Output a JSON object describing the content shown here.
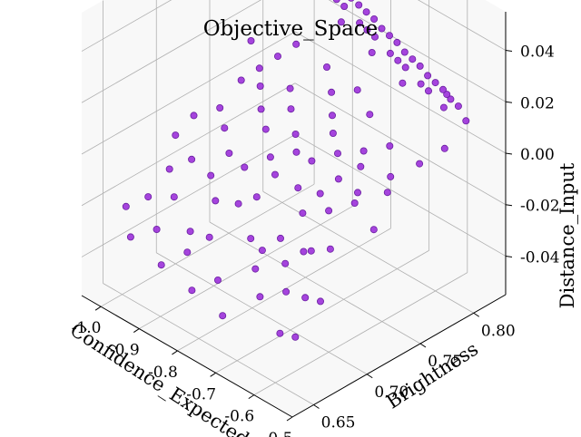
{
  "chart_data": {
    "type": "scatter",
    "projection": "3d",
    "title": "Objective_Space",
    "xlabel": "Confidence_Expected",
    "ylabel": "Brightness",
    "zlabel": "Distance_Input",
    "xlim": [
      -1.05,
      -0.5
    ],
    "ylim": [
      0.63,
      0.83
    ],
    "zlim": [
      -0.055,
      0.055
    ],
    "x_ticks": [
      "-1.0",
      "-0.9",
      "-0.8",
      "-0.7",
      "-0.6",
      "-0.5"
    ],
    "y_ticks": [
      "0.65",
      "0.70",
      "0.75",
      "0.80"
    ],
    "z_ticks": [
      "-0.04",
      "-0.02",
      "0.00",
      "0.02",
      "0.04"
    ],
    "grid": true,
    "point_color": "#9b30d9",
    "point_edge_color": "#6a1fa0",
    "series": [
      {
        "points": [
          [
            -1.0,
            0.8,
            0.05
          ],
          [
            -0.98,
            0.8,
            0.049
          ],
          [
            -0.96,
            0.8,
            0.048
          ],
          [
            -0.94,
            0.8,
            0.047
          ],
          [
            -0.92,
            0.8,
            0.046
          ],
          [
            -0.9,
            0.8,
            0.045
          ],
          [
            -0.88,
            0.8,
            0.044
          ],
          [
            -0.86,
            0.8,
            0.043
          ],
          [
            -0.84,
            0.8,
            0.041
          ],
          [
            -0.82,
            0.8,
            0.04
          ],
          [
            -0.8,
            0.8,
            0.039
          ],
          [
            -0.78,
            0.8,
            0.038
          ],
          [
            -0.76,
            0.8,
            0.037
          ],
          [
            -0.74,
            0.8,
            0.035
          ],
          [
            -0.72,
            0.8,
            0.034
          ],
          [
            -0.7,
            0.8,
            0.033
          ],
          [
            -0.68,
            0.8,
            0.031
          ],
          [
            -0.66,
            0.8,
            0.03
          ],
          [
            -0.64,
            0.8,
            0.029
          ],
          [
            -0.62,
            0.8,
            0.027
          ],
          [
            -0.6,
            0.8,
            0.026
          ],
          [
            -0.58,
            0.8,
            0.025
          ],
          [
            -0.56,
            0.8,
            0.023
          ],
          [
            -0.54,
            0.8,
            0.022
          ],
          [
            -0.97,
            0.79,
            0.048
          ],
          [
            -0.93,
            0.79,
            0.046
          ],
          [
            -0.89,
            0.79,
            0.044
          ],
          [
            -0.85,
            0.79,
            0.042
          ],
          [
            -0.81,
            0.79,
            0.04
          ],
          [
            -0.77,
            0.79,
            0.037
          ],
          [
            -0.73,
            0.79,
            0.035
          ],
          [
            -0.69,
            0.79,
            0.032
          ],
          [
            -0.65,
            0.79,
            0.03
          ],
          [
            -0.61,
            0.79,
            0.027
          ],
          [
            -0.95,
            0.78,
            0.046
          ],
          [
            -0.87,
            0.78,
            0.042
          ],
          [
            -0.79,
            0.78,
            0.038
          ],
          [
            -0.71,
            0.78,
            0.033
          ],
          [
            -0.63,
            0.78,
            0.028
          ],
          [
            -0.99,
            0.79,
            0.049
          ],
          [
            -0.91,
            0.79,
            0.045
          ],
          [
            -0.83,
            0.79,
            0.041
          ],
          [
            -0.75,
            0.79,
            0.036
          ],
          [
            -0.67,
            0.79,
            0.031
          ],
          [
            -0.59,
            0.79,
            0.026
          ],
          [
            -0.57,
            0.8,
            0.024
          ],
          [
            -0.55,
            0.79,
            0.023
          ],
          [
            -0.52,
            0.8,
            0.018
          ],
          [
            -0.52,
            0.78,
            0.012
          ],
          [
            -0.53,
            0.76,
            0.01
          ],
          [
            -0.55,
            0.74,
            0.008
          ],
          [
            -0.58,
            0.75,
            0.015
          ],
          [
            -0.6,
            0.73,
            0.01
          ],
          [
            -0.63,
            0.72,
            0.005
          ],
          [
            -0.66,
            0.76,
            0.018
          ],
          [
            -0.7,
            0.74,
            0.012
          ],
          [
            -0.74,
            0.72,
            0.006
          ],
          [
            -0.78,
            0.71,
            0.003
          ],
          [
            -0.82,
            0.72,
            0.008
          ],
          [
            -0.86,
            0.73,
            0.01
          ],
          [
            -0.9,
            0.71,
            0.004
          ],
          [
            -0.94,
            0.72,
            0.006
          ],
          [
            -0.98,
            0.71,
            0.002
          ],
          [
            -0.97,
            0.76,
            0.02
          ],
          [
            -0.92,
            0.75,
            0.016
          ],
          [
            -0.88,
            0.77,
            0.024
          ],
          [
            -0.84,
            0.75,
            0.015
          ],
          [
            -0.8,
            0.77,
            0.022
          ],
          [
            -0.76,
            0.76,
            0.018
          ],
          [
            -0.72,
            0.77,
            0.02
          ],
          [
            -0.68,
            0.7,
            0.002
          ],
          [
            -0.64,
            0.69,
            -0.002
          ],
          [
            -0.6,
            0.7,
            0.0
          ],
          [
            -0.56,
            0.71,
            0.004
          ],
          [
            -0.54,
            0.68,
            -0.005
          ],
          [
            -1.0,
            0.7,
            -0.005
          ],
          [
            -0.96,
            0.68,
            -0.01
          ],
          [
            -0.92,
            0.67,
            -0.015
          ],
          [
            -0.88,
            0.69,
            -0.008
          ],
          [
            -0.84,
            0.68,
            -0.012
          ],
          [
            -0.8,
            0.66,
            -0.018
          ],
          [
            -0.76,
            0.69,
            -0.006
          ],
          [
            -0.72,
            0.67,
            -0.014
          ],
          [
            -0.68,
            0.66,
            -0.02
          ],
          [
            -0.64,
            0.65,
            -0.025
          ],
          [
            -0.6,
            0.66,
            -0.022
          ],
          [
            -0.56,
            0.64,
            -0.03
          ],
          [
            -0.99,
            0.65,
            -0.02
          ],
          [
            -0.95,
            0.64,
            -0.026
          ],
          [
            -0.91,
            0.65,
            -0.022
          ],
          [
            -0.87,
            0.64,
            -0.03
          ],
          [
            -0.83,
            0.65,
            -0.024
          ],
          [
            -0.79,
            0.64,
            -0.033
          ],
          [
            -0.75,
            0.65,
            -0.028
          ],
          [
            -0.71,
            0.64,
            -0.036
          ],
          [
            -0.67,
            0.68,
            -0.012
          ],
          [
            -0.63,
            0.67,
            -0.016
          ],
          [
            -0.59,
            0.68,
            -0.01
          ],
          [
            -0.55,
            0.66,
            -0.02
          ],
          [
            -0.53,
            0.73,
            0.006
          ],
          [
            -0.51,
            0.71,
            -0.002
          ],
          [
            -0.51,
            0.66,
            -0.018
          ],
          [
            -0.52,
            0.64,
            -0.028
          ],
          [
            -0.86,
            0.7,
            0.0
          ],
          [
            -0.82,
            0.7,
            -0.002
          ],
          [
            -0.78,
            0.68,
            -0.008
          ],
          [
            -0.74,
            0.7,
            0.002
          ],
          [
            -0.7,
            0.72,
            0.006
          ],
          [
            -0.66,
            0.73,
            0.01
          ],
          [
            -0.62,
            0.74,
            0.012
          ],
          [
            -0.58,
            0.72,
            0.004
          ],
          [
            -0.94,
            0.74,
            0.012
          ],
          [
            -0.9,
            0.76,
            0.02
          ],
          [
            -0.96,
            0.66,
            -0.016
          ],
          [
            -0.93,
            0.69,
            -0.006
          ],
          [
            -0.89,
            0.74,
            0.014
          ],
          [
            -0.85,
            0.66,
            -0.02
          ],
          [
            -0.81,
            0.74,
            0.012
          ],
          [
            -0.77,
            0.73,
            0.008
          ],
          [
            -0.73,
            0.75,
            0.014
          ],
          [
            -0.69,
            0.67,
            -0.016
          ],
          [
            -0.65,
            0.71,
            0.0
          ],
          [
            -0.61,
            0.68,
            -0.012
          ]
        ]
      }
    ]
  }
}
